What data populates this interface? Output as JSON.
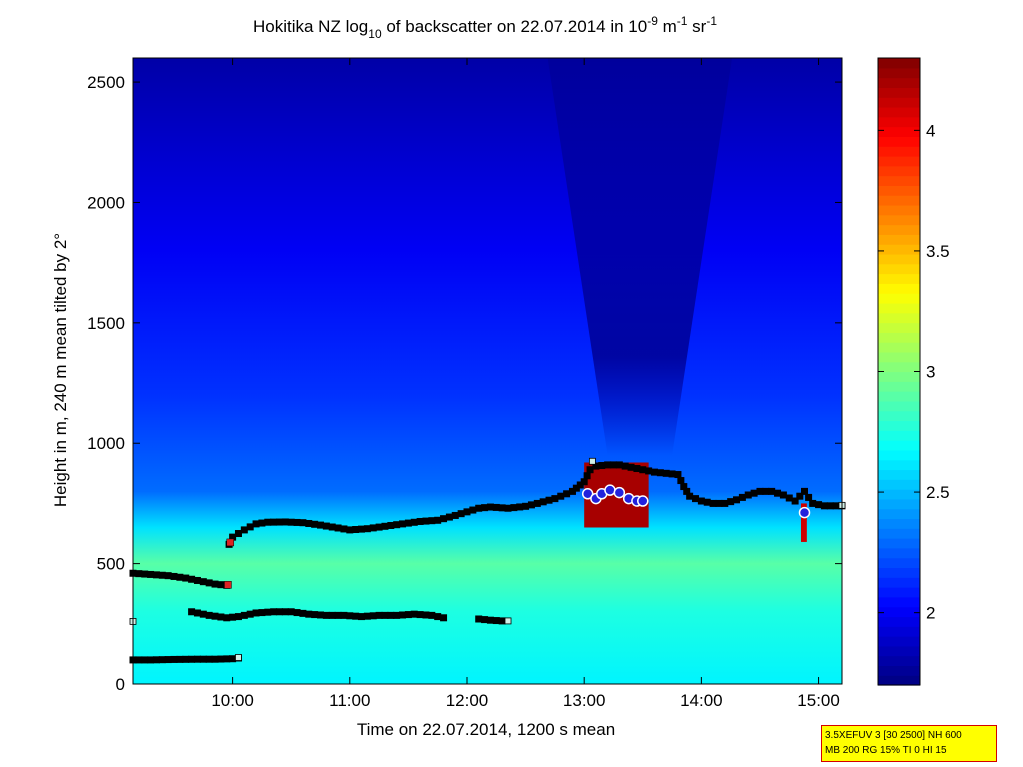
{
  "chart_data": {
    "type": "heatmap",
    "title": {
      "prefix": "Hokitika NZ log",
      "sub": "10",
      "middle": " of backscatter on 22.07.2014 in 10",
      "sup1": "-9",
      "unit1": " m",
      "sup2": "-1",
      "unit2": " sr",
      "sup3": "-1"
    },
    "xlabel": "Time on 22.07.2014, 1200 s mean",
    "ylabel": "Height in m, 240 m mean tilted by 2°",
    "xlim": [
      9.15,
      15.2
    ],
    "ylim": [
      0,
      2600
    ],
    "x_ticks": [
      {
        "value": 10,
        "label": "10:00"
      },
      {
        "value": 11,
        "label": "11:00"
      },
      {
        "value": 12,
        "label": "12:00"
      },
      {
        "value": 13,
        "label": "13:00"
      },
      {
        "value": 14,
        "label": "14:00"
      },
      {
        "value": 15,
        "label": "15:00"
      }
    ],
    "y_ticks": [
      {
        "value": 0,
        "label": "0"
      },
      {
        "value": 500,
        "label": "500"
      },
      {
        "value": 1000,
        "label": "1000"
      },
      {
        "value": 1500,
        "label": "1500"
      },
      {
        "value": 2000,
        "label": "2000"
      },
      {
        "value": 2500,
        "label": "2500"
      }
    ],
    "colorbar": {
      "range": [
        1.7,
        4.3
      ],
      "ticks": [
        {
          "value": 2,
          "label": "2"
        },
        {
          "value": 2.5,
          "label": "2.5"
        },
        {
          "value": 3,
          "label": "3"
        },
        {
          "value": 3.5,
          "label": "3.5"
        },
        {
          "value": 4,
          "label": "4"
        }
      ],
      "colormap": "jet"
    },
    "field": {
      "base_level": [
        {
          "height": 0,
          "value": 2.65
        },
        {
          "height": 300,
          "value": 2.75
        },
        {
          "height": 500,
          "value": 2.9
        },
        {
          "height": 650,
          "value": 2.6
        },
        {
          "height": 800,
          "value": 2.3
        },
        {
          "height": 1200,
          "value": 2.15
        },
        {
          "height": 1800,
          "value": 2.0
        },
        {
          "height": 2600,
          "value": 1.8
        }
      ],
      "dark_plume": {
        "time": [
          13.2,
          13.75
        ],
        "from_height": 950,
        "value": 1.75
      },
      "high_value_blocks": [
        {
          "time": [
            13.0,
            13.55
          ],
          "height": [
            650,
            920
          ],
          "value": 4.2
        },
        {
          "time": [
            14.85,
            14.9
          ],
          "height": [
            590,
            750
          ],
          "value": 4.1
        }
      ]
    },
    "series": [
      {
        "name": "layer-top",
        "marker": "black-square",
        "points": [
          [
            9.97,
            580
          ],
          [
            10.0,
            610
          ],
          [
            10.1,
            640
          ],
          [
            10.2,
            665
          ],
          [
            10.3,
            672
          ],
          [
            10.45,
            673
          ],
          [
            10.6,
            670
          ],
          [
            10.75,
            660
          ],
          [
            10.9,
            648
          ],
          [
            11.0,
            640
          ],
          [
            11.15,
            645
          ],
          [
            11.3,
            655
          ],
          [
            11.45,
            665
          ],
          [
            11.6,
            675
          ],
          [
            11.75,
            680
          ],
          [
            11.9,
            700
          ],
          [
            12.0,
            715
          ],
          [
            12.1,
            730
          ],
          [
            12.2,
            735
          ],
          [
            12.35,
            730
          ],
          [
            12.5,
            738
          ],
          [
            12.6,
            750
          ],
          [
            12.75,
            770
          ],
          [
            12.9,
            800
          ],
          [
            13.0,
            840
          ],
          [
            13.05,
            890
          ],
          [
            13.1,
            905
          ],
          [
            13.2,
            910
          ],
          [
            13.3,
            910
          ],
          [
            13.4,
            900
          ],
          [
            13.5,
            890
          ],
          [
            13.6,
            880
          ],
          [
            13.7,
            875
          ],
          [
            13.8,
            870
          ],
          [
            13.85,
            820
          ],
          [
            13.9,
            780
          ],
          [
            14.0,
            760
          ],
          [
            14.1,
            750
          ],
          [
            14.2,
            750
          ],
          [
            14.3,
            765
          ],
          [
            14.4,
            785
          ],
          [
            14.5,
            800
          ],
          [
            14.6,
            800
          ],
          [
            14.7,
            785
          ],
          [
            14.8,
            760
          ],
          [
            14.88,
            800
          ],
          [
            14.95,
            750
          ],
          [
            15.05,
            740
          ],
          [
            15.2,
            740
          ]
        ]
      },
      {
        "name": "layer-early",
        "marker": "black-square",
        "points": [
          [
            9.15,
            460
          ],
          [
            9.3,
            455
          ],
          [
            9.45,
            450
          ],
          [
            9.6,
            440
          ],
          [
            9.75,
            425
          ],
          [
            9.85,
            415
          ],
          [
            9.95,
            410
          ]
        ]
      },
      {
        "name": "layer-low",
        "marker": "black-square",
        "points": [
          [
            9.65,
            300
          ],
          [
            9.8,
            285
          ],
          [
            9.95,
            275
          ],
          [
            10.05,
            280
          ],
          [
            10.2,
            295
          ],
          [
            10.35,
            300
          ],
          [
            10.5,
            300
          ],
          [
            10.65,
            290
          ],
          [
            10.8,
            285
          ],
          [
            10.95,
            285
          ],
          [
            11.1,
            280
          ],
          [
            11.25,
            285
          ],
          [
            11.4,
            285
          ],
          [
            11.55,
            290
          ],
          [
            11.7,
            285
          ],
          [
            11.8,
            275
          ]
        ]
      },
      {
        "name": "layer-low-2",
        "marker": "black-square",
        "points": [
          [
            12.1,
            270
          ],
          [
            12.2,
            265
          ],
          [
            12.3,
            262
          ]
        ]
      },
      {
        "name": "layer-surface",
        "marker": "black-square",
        "points": [
          [
            9.15,
            100
          ],
          [
            9.3,
            100
          ],
          [
            9.5,
            102
          ],
          [
            9.7,
            103
          ],
          [
            9.85,
            103
          ],
          [
            10.0,
            105
          ],
          [
            10.05,
            108
          ]
        ]
      },
      {
        "name": "cloud-base",
        "marker": "blue-circle",
        "points": [
          [
            13.03,
            790
          ],
          [
            13.1,
            770
          ],
          [
            13.15,
            790
          ],
          [
            13.22,
            805
          ],
          [
            13.3,
            795
          ],
          [
            13.38,
            770
          ],
          [
            13.45,
            760
          ],
          [
            13.5,
            760
          ],
          [
            14.88,
            712
          ]
        ]
      }
    ],
    "red_markers": [
      [
        9.96,
        412
      ],
      [
        9.98,
        588
      ]
    ],
    "light_markers": [
      [
        9.15,
        260
      ],
      [
        10.05,
        110
      ],
      [
        12.35,
        262
      ],
      [
        13.07,
        925
      ],
      [
        15.2,
        742
      ]
    ]
  },
  "info_box": {
    "line1": "3.5XEFUV 3 [30 2500] NH 600",
    "line2": "MB 200 RG 15% TI 0 HI 15"
  }
}
